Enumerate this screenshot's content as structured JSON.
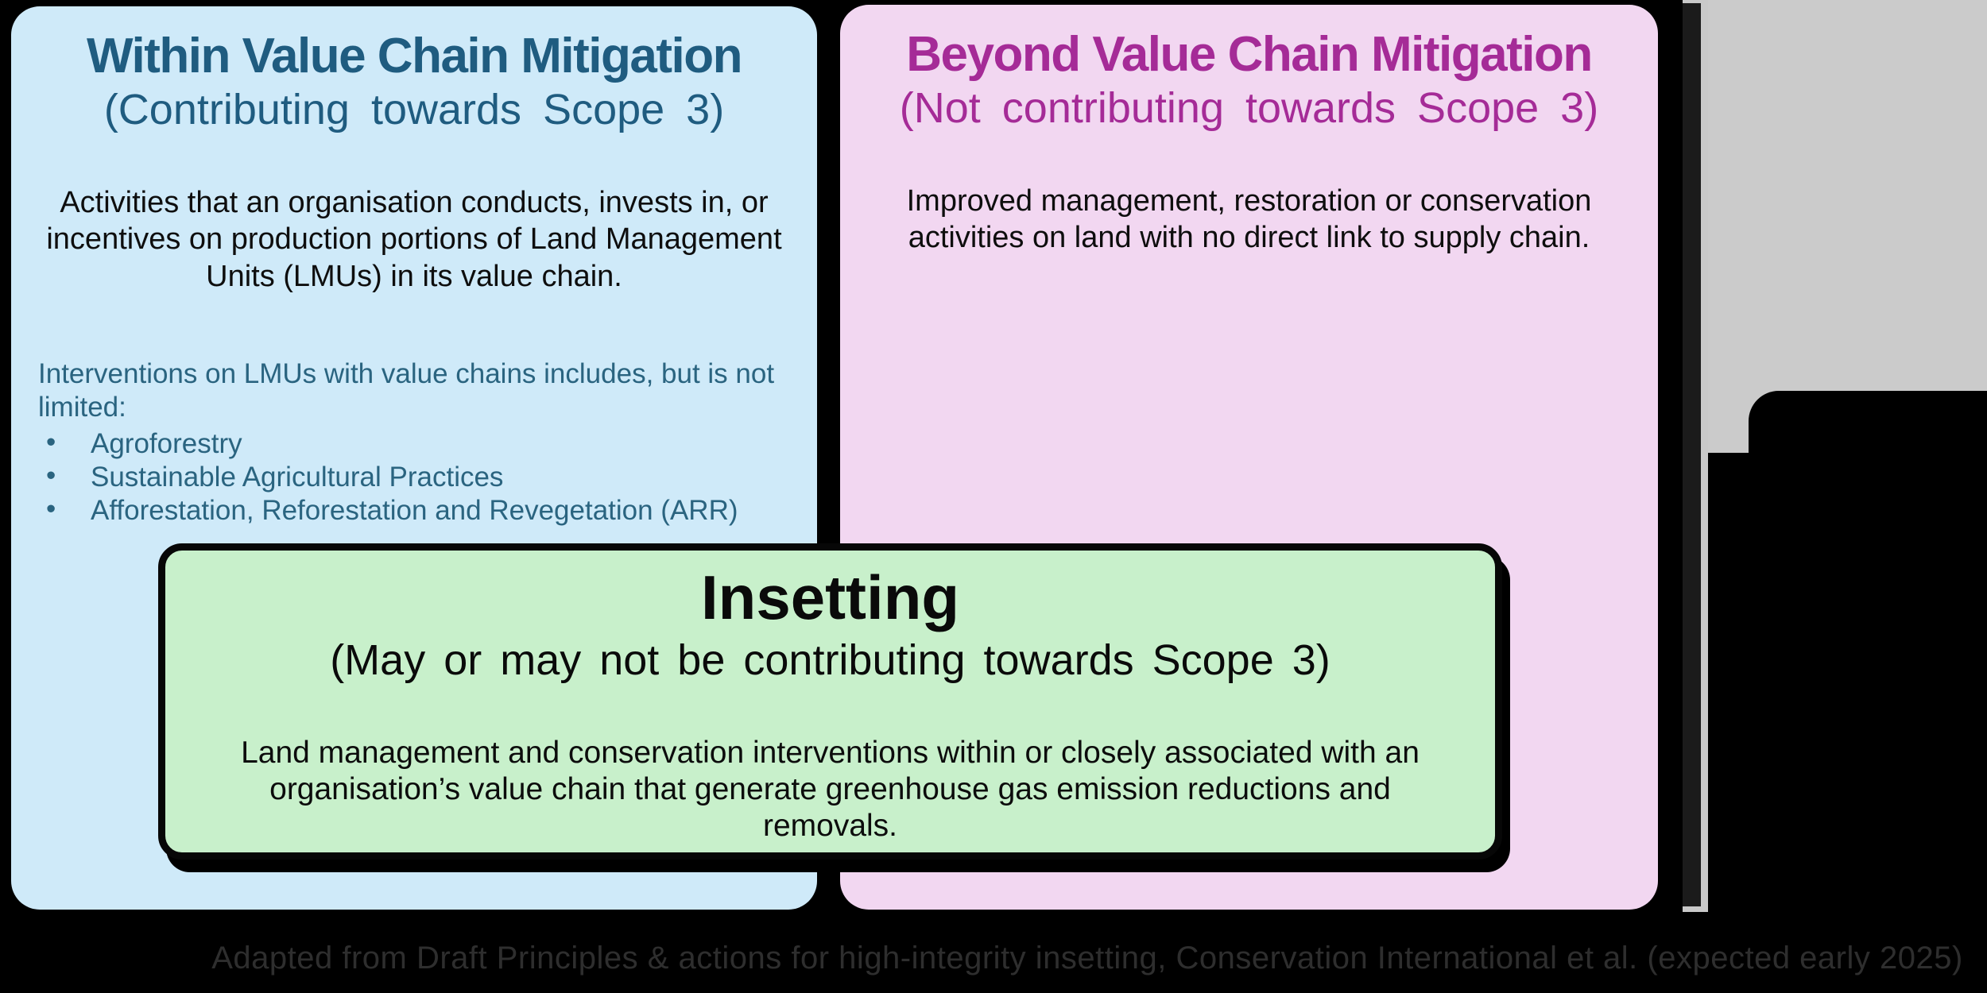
{
  "canvas": {
    "background": "#000000"
  },
  "within": {
    "title": "Within Value Chain Mitigation",
    "subtitle": "(Contributing towards Scope 3)",
    "body": "Activities that an organisation conducts, invests in, or incentives on production portions of Land Management Units (LMUs) in its value chain.",
    "list_intro": "Interventions on LMUs with value chains includes, but is not limited:",
    "bullet_glyph": "•",
    "bullets": [
      "Agroforestry",
      "Sustainable Agricultural Practices",
      "Afforestation, Reforestation and Revegetation (ARR)"
    ],
    "colors": {
      "background": "#cfeaf9",
      "accent": "#1f5c80",
      "body_text": "#0e0e0e",
      "list_text": "#2a6480"
    }
  },
  "beyond": {
    "title": "Beyond Value Chain Mitigation",
    "subtitle": "(Not contributing towards Scope 3)",
    "body": "Improved management, restoration or conservation activities on land with no direct link to supply chain.",
    "colors": {
      "background": "#f2d7f1",
      "accent": "#a52b97",
      "body_text": "#0e0e0e"
    }
  },
  "insetting": {
    "title": "Insetting",
    "subtitle": "(May or may not be contributing towards Scope 3)",
    "body": "Land management and conservation interventions within or closely associated with an organisation’s value chain that generate greenhouse gas emission reductions and removals.",
    "colors": {
      "background": "#c8f0cb",
      "border": "#070707",
      "text": "#0c0c0c"
    }
  },
  "caption": "Adapted from Draft Principles & actions for high-integrity insetting, Conservation International et al. (expected early 2025)",
  "caption_color": "#2e2e2e",
  "side_window_edge": {
    "stripe_color": "#1b1b1b",
    "edge_line_color": "#c9c9c9",
    "panel_color": "#cbcbcb",
    "blob_color": "#000000"
  }
}
